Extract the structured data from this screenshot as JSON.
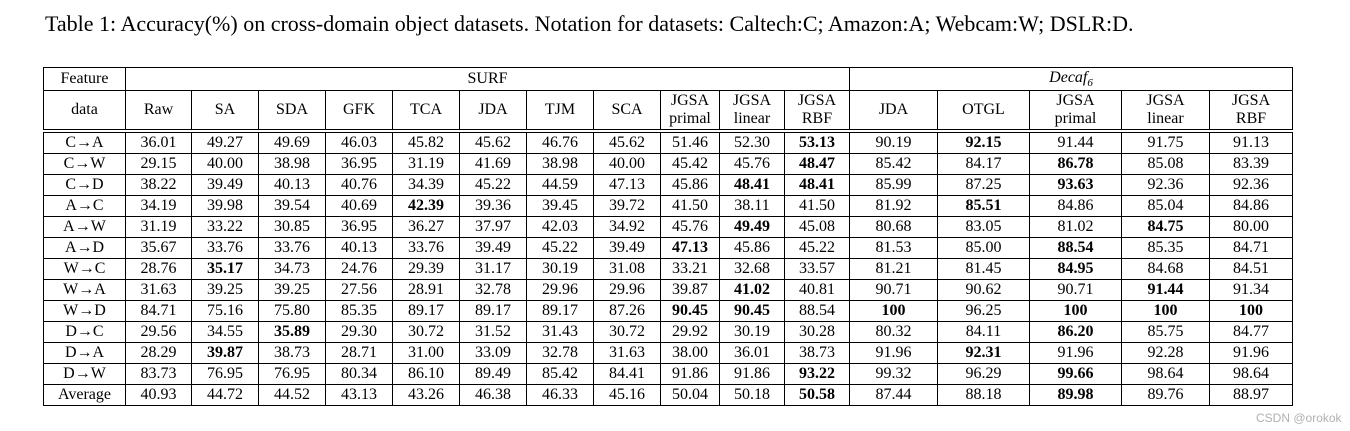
{
  "caption": "Table 1: Accuracy(%) on cross-domain object datasets. Notation for datasets: Caltech:C; Amazon:A; Webcam:W; DSLR:D.",
  "watermark": "CSDN @orokok",
  "table": {
    "corner_header": {
      "line1": "Feature",
      "line2": "data"
    },
    "groups": [
      {
        "label": "SURF",
        "span": 11
      },
      {
        "label": "Decaf",
        "subscript": "6",
        "span": 5
      }
    ],
    "columns": [
      "Raw",
      "SA",
      "SDA",
      "GFK",
      "TCA",
      "JDA",
      "TJM",
      "SCA",
      "JGSA\nprimal",
      "JGSA\nlinear",
      "JGSA\nRBF",
      "JDA",
      "OTGL",
      "JGSA\nprimal",
      "JGSA\nlinear",
      "JGSA\nRBF"
    ],
    "rows": [
      {
        "label": "C→A",
        "values": [
          "36.01",
          "49.27",
          "49.69",
          "46.03",
          "45.82",
          "45.62",
          "46.76",
          "45.62",
          "51.46",
          "52.30",
          "53.13",
          "90.19",
          "92.15",
          "91.44",
          "91.75",
          "91.13"
        ],
        "bold": [
          10,
          12
        ]
      },
      {
        "label": "C→W",
        "values": [
          "29.15",
          "40.00",
          "38.98",
          "36.95",
          "31.19",
          "41.69",
          "38.98",
          "40.00",
          "45.42",
          "45.76",
          "48.47",
          "85.42",
          "84.17",
          "86.78",
          "85.08",
          "83.39"
        ],
        "bold": [
          10,
          13
        ]
      },
      {
        "label": "C→D",
        "values": [
          "38.22",
          "39.49",
          "40.13",
          "40.76",
          "34.39",
          "45.22",
          "44.59",
          "47.13",
          "45.86",
          "48.41",
          "48.41",
          "85.99",
          "87.25",
          "93.63",
          "92.36",
          "92.36"
        ],
        "bold": [
          9,
          10,
          13
        ]
      },
      {
        "label": "A→C",
        "values": [
          "34.19",
          "39.98",
          "39.54",
          "40.69",
          "42.39",
          "39.36",
          "39.45",
          "39.72",
          "41.50",
          "38.11",
          "41.50",
          "81.92",
          "85.51",
          "84.86",
          "85.04",
          "84.86"
        ],
        "bold": [
          4,
          12
        ]
      },
      {
        "label": "A→W",
        "values": [
          "31.19",
          "33.22",
          "30.85",
          "36.95",
          "36.27",
          "37.97",
          "42.03",
          "34.92",
          "45.76",
          "49.49",
          "45.08",
          "80.68",
          "83.05",
          "81.02",
          "84.75",
          "80.00"
        ],
        "bold": [
          9,
          14
        ]
      },
      {
        "label": "A→D",
        "values": [
          "35.67",
          "33.76",
          "33.76",
          "40.13",
          "33.76",
          "39.49",
          "45.22",
          "39.49",
          "47.13",
          "45.86",
          "45.22",
          "81.53",
          "85.00",
          "88.54",
          "85.35",
          "84.71"
        ],
        "bold": [
          8,
          13
        ]
      },
      {
        "label": "W→C",
        "values": [
          "28.76",
          "35.17",
          "34.73",
          "24.76",
          "29.39",
          "31.17",
          "30.19",
          "31.08",
          "33.21",
          "32.68",
          "33.57",
          "81.21",
          "81.45",
          "84.95",
          "84.68",
          "84.51"
        ],
        "bold": [
          1,
          13
        ]
      },
      {
        "label": "W→A",
        "values": [
          "31.63",
          "39.25",
          "39.25",
          "27.56",
          "28.91",
          "32.78",
          "29.96",
          "29.96",
          "39.87",
          "41.02",
          "40.81",
          "90.71",
          "90.62",
          "90.71",
          "91.44",
          "91.34"
        ],
        "bold": [
          9,
          14
        ]
      },
      {
        "label": "W→D",
        "values": [
          "84.71",
          "75.16",
          "75.80",
          "85.35",
          "89.17",
          "89.17",
          "89.17",
          "87.26",
          "90.45",
          "90.45",
          "88.54",
          "100",
          "96.25",
          "100",
          "100",
          "100"
        ],
        "bold": [
          8,
          9,
          11,
          13,
          14,
          15
        ]
      },
      {
        "label": "D→C",
        "values": [
          "29.56",
          "34.55",
          "35.89",
          "29.30",
          "30.72",
          "31.52",
          "31.43",
          "30.72",
          "29.92",
          "30.19",
          "30.28",
          "80.32",
          "84.11",
          "86.20",
          "85.75",
          "84.77"
        ],
        "bold": [
          2,
          13
        ]
      },
      {
        "label": "D→A",
        "values": [
          "28.29",
          "39.87",
          "38.73",
          "28.71",
          "31.00",
          "33.09",
          "32.78",
          "31.63",
          "38.00",
          "36.01",
          "38.73",
          "91.96",
          "92.31",
          "91.96",
          "92.28",
          "91.96"
        ],
        "bold": [
          1,
          12
        ]
      },
      {
        "label": "D→W",
        "values": [
          "83.73",
          "76.95",
          "76.95",
          "80.34",
          "86.10",
          "89.49",
          "85.42",
          "84.41",
          "91.86",
          "91.86",
          "93.22",
          "99.32",
          "96.29",
          "99.66",
          "98.64",
          "98.64"
        ],
        "bold": [
          10,
          13
        ]
      },
      {
        "label": "Average",
        "values": [
          "40.93",
          "44.72",
          "44.52",
          "43.13",
          "43.26",
          "46.38",
          "46.33",
          "45.16",
          "50.04",
          "50.18",
          "50.58",
          "87.44",
          "88.18",
          "89.98",
          "89.76",
          "88.97"
        ],
        "bold": [
          10,
          13
        ]
      }
    ]
  }
}
